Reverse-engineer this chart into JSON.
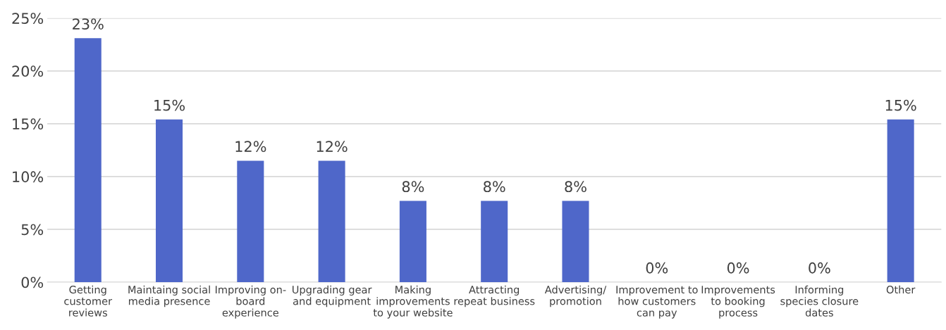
{
  "chart_data": {
    "type": "bar",
    "categories": [
      "Getting\ncustomer\nreviews",
      "Maintaing social\nmedia presence",
      "Improving on-\nboard\nexperience",
      "Upgrading gear\nand equipment",
      "Making\nimprovements\nto your website",
      "Attracting\nrepeat business",
      "Advertising/\npromotion",
      "Improvement to\nhow customers\ncan pay",
      "Improvements\nto booking\nprocess",
      "Informing\nspecies closure\ndates",
      "Other"
    ],
    "values": [
      23.1,
      15.4,
      11.5,
      11.5,
      7.7,
      7.7,
      7.7,
      0,
      0,
      0,
      15.4
    ],
    "value_labels": [
      "23%",
      "15%",
      "12%",
      "12%",
      "8%",
      "8%",
      "8%",
      "0%",
      "0%",
      "0%",
      "15%"
    ],
    "color": "#4f67c9",
    "ylim": [
      0,
      25
    ],
    "yticks": [
      {
        "value": 0,
        "label": "0%"
      },
      {
        "value": 5,
        "label": "5%"
      },
      {
        "value": 10,
        "label": "10%"
      },
      {
        "value": 15,
        "label": "15%"
      },
      {
        "value": 20,
        "label": "20%"
      },
      {
        "value": 25,
        "label": "25%"
      }
    ],
    "grid": "y",
    "legend": false
  }
}
